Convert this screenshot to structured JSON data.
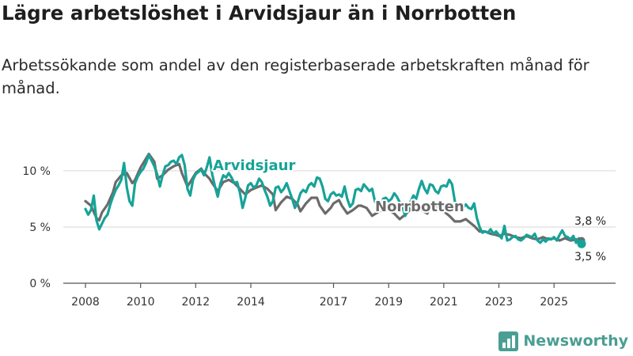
{
  "title": "Lägre arbetslöshet i Arvidsjaur än i Norrbotten",
  "subtitle": "Arbetssökande som andel av den registerbaserade arbetskraften månad för månad.",
  "brand": "Newsworthy",
  "colors": {
    "arvidsjaur": "#17a398",
    "norrbotten": "#6b6b6b",
    "grid": "#d6d6d6",
    "axis": "#555555"
  },
  "chart_data": {
    "type": "line",
    "title": "Lägre arbetslöshet i Arvidsjaur än i Norrbotten",
    "xlabel": "",
    "ylabel": "",
    "ylim": [
      0,
      12
    ],
    "xlim": [
      2008.0,
      2026.2
    ],
    "y_ticks": [
      0,
      5,
      10
    ],
    "y_tick_labels": [
      "0 %",
      "5 %",
      "10 %"
    ],
    "x_ticks": [
      2008,
      2010,
      2012,
      2014,
      2017,
      2019,
      2021,
      2023,
      2025
    ],
    "x_tick_labels": [
      "2008",
      "2010",
      "2012",
      "2014",
      "2017",
      "2019",
      "2021",
      "2023",
      "2025"
    ],
    "grid": true,
    "series": [
      {
        "name": "Arvidsjaur",
        "label": "Arvidsjaur",
        "end_label": "3,5 %",
        "end_value": 3.5,
        "points": [
          [
            2008.0,
            6.6
          ],
          [
            2008.1,
            6.1
          ],
          [
            2008.2,
            6.5
          ],
          [
            2008.3,
            7.8
          ],
          [
            2008.4,
            5.6
          ],
          [
            2008.5,
            4.8
          ],
          [
            2008.6,
            5.3
          ],
          [
            2008.7,
            5.8
          ],
          [
            2008.8,
            6.1
          ],
          [
            2008.9,
            7.0
          ],
          [
            2009.0,
            7.7
          ],
          [
            2009.1,
            8.3
          ],
          [
            2009.2,
            8.7
          ],
          [
            2009.3,
            9.2
          ],
          [
            2009.4,
            10.7
          ],
          [
            2009.5,
            8.5
          ],
          [
            2009.6,
            7.3
          ],
          [
            2009.7,
            6.9
          ],
          [
            2009.8,
            8.9
          ],
          [
            2009.9,
            9.5
          ],
          [
            2010.0,
            9.9
          ],
          [
            2010.1,
            10.2
          ],
          [
            2010.2,
            10.7
          ],
          [
            2010.3,
            11.4
          ],
          [
            2010.4,
            10.9
          ],
          [
            2010.5,
            10.4
          ],
          [
            2010.6,
            9.7
          ],
          [
            2010.7,
            8.6
          ],
          [
            2010.8,
            9.6
          ],
          [
            2010.9,
            10.4
          ],
          [
            2011.0,
            10.5
          ],
          [
            2011.1,
            10.8
          ],
          [
            2011.2,
            10.9
          ],
          [
            2011.3,
            10.6
          ],
          [
            2011.4,
            11.2
          ],
          [
            2011.5,
            11.4
          ],
          [
            2011.6,
            10.5
          ],
          [
            2011.7,
            8.4
          ],
          [
            2011.8,
            7.8
          ],
          [
            2011.9,
            9.2
          ],
          [
            2012.0,
            9.7
          ],
          [
            2012.1,
            9.9
          ],
          [
            2012.2,
            10.1
          ],
          [
            2012.3,
            9.6
          ],
          [
            2012.4,
            10.3
          ],
          [
            2012.5,
            11.2
          ],
          [
            2012.6,
            9.7
          ],
          [
            2012.7,
            8.6
          ],
          [
            2012.8,
            7.7
          ],
          [
            2012.9,
            8.9
          ],
          [
            2013.0,
            9.6
          ],
          [
            2013.1,
            9.4
          ],
          [
            2013.2,
            9.8
          ],
          [
            2013.3,
            9.4
          ],
          [
            2013.4,
            8.9
          ],
          [
            2013.5,
            9.0
          ],
          [
            2013.6,
            8.1
          ],
          [
            2013.7,
            6.7
          ],
          [
            2013.8,
            7.6
          ],
          [
            2013.9,
            8.7
          ],
          [
            2014.0,
            8.9
          ],
          [
            2014.1,
            8.5
          ],
          [
            2014.2,
            8.7
          ],
          [
            2014.3,
            9.3
          ],
          [
            2014.4,
            9.0
          ],
          [
            2014.5,
            8.3
          ],
          [
            2014.6,
            7.7
          ],
          [
            2014.7,
            6.9
          ],
          [
            2014.8,
            7.3
          ],
          [
            2014.9,
            8.5
          ],
          [
            2015.0,
            8.6
          ],
          [
            2015.1,
            8.1
          ],
          [
            2015.2,
            8.4
          ],
          [
            2015.3,
            8.9
          ],
          [
            2015.4,
            8.2
          ],
          [
            2015.5,
            7.5
          ],
          [
            2015.6,
            6.7
          ],
          [
            2015.7,
            7.2
          ],
          [
            2015.8,
            8.0
          ],
          [
            2015.9,
            8.3
          ],
          [
            2016.0,
            8.1
          ],
          [
            2016.1,
            8.7
          ],
          [
            2016.2,
            8.9
          ],
          [
            2016.3,
            8.6
          ],
          [
            2016.4,
            9.4
          ],
          [
            2016.5,
            9.3
          ],
          [
            2016.6,
            8.6
          ],
          [
            2016.7,
            7.5
          ],
          [
            2016.8,
            7.3
          ],
          [
            2016.9,
            7.9
          ],
          [
            2017.0,
            8.1
          ],
          [
            2017.1,
            7.8
          ],
          [
            2017.2,
            7.9
          ],
          [
            2017.3,
            7.7
          ],
          [
            2017.4,
            8.6
          ],
          [
            2017.5,
            7.5
          ],
          [
            2017.6,
            6.8
          ],
          [
            2017.7,
            7.1
          ],
          [
            2017.8,
            8.3
          ],
          [
            2017.9,
            8.4
          ],
          [
            2018.0,
            8.2
          ],
          [
            2018.1,
            8.8
          ],
          [
            2018.2,
            8.5
          ],
          [
            2018.3,
            8.2
          ],
          [
            2018.4,
            8.4
          ],
          [
            2018.5,
            7.3
          ],
          [
            2018.6,
            6.9
          ],
          [
            2018.7,
            6.5
          ],
          [
            2018.8,
            7.5
          ],
          [
            2018.9,
            7.6
          ],
          [
            2019.0,
            7.3
          ],
          [
            2019.1,
            7.5
          ],
          [
            2019.2,
            8.0
          ],
          [
            2019.3,
            7.7
          ],
          [
            2019.4,
            7.2
          ],
          [
            2019.5,
            6.8
          ],
          [
            2019.6,
            6.0
          ],
          [
            2019.7,
            6.5
          ],
          [
            2019.8,
            7.3
          ],
          [
            2019.9,
            7.8
          ],
          [
            2020.0,
            7.5
          ],
          [
            2020.1,
            8.4
          ],
          [
            2020.2,
            9.1
          ],
          [
            2020.3,
            8.4
          ],
          [
            2020.4,
            8.0
          ],
          [
            2020.5,
            8.8
          ],
          [
            2020.6,
            8.7
          ],
          [
            2020.7,
            8.2
          ],
          [
            2020.8,
            8.0
          ],
          [
            2020.9,
            8.6
          ],
          [
            2021.0,
            8.7
          ],
          [
            2021.1,
            8.6
          ],
          [
            2021.2,
            9.2
          ],
          [
            2021.3,
            8.8
          ],
          [
            2021.4,
            7.3
          ],
          [
            2021.5,
            6.6
          ],
          [
            2021.6,
            6.9
          ],
          [
            2021.7,
            6.7
          ],
          [
            2021.8,
            7.0
          ],
          [
            2021.9,
            6.7
          ],
          [
            2022.0,
            6.6
          ],
          [
            2022.1,
            7.1
          ],
          [
            2022.2,
            5.8
          ],
          [
            2022.3,
            5.0
          ],
          [
            2022.4,
            4.5
          ],
          [
            2022.5,
            4.6
          ],
          [
            2022.6,
            4.5
          ],
          [
            2022.7,
            4.8
          ],
          [
            2022.8,
            4.4
          ],
          [
            2022.9,
            4.6
          ],
          [
            2023.0,
            4.3
          ],
          [
            2023.1,
            4.0
          ],
          [
            2023.2,
            5.1
          ],
          [
            2023.3,
            3.8
          ],
          [
            2023.4,
            3.9
          ],
          [
            2023.5,
            4.1
          ],
          [
            2023.6,
            4.2
          ],
          [
            2023.7,
            3.9
          ],
          [
            2023.8,
            3.8
          ],
          [
            2023.9,
            4.0
          ],
          [
            2024.0,
            4.3
          ],
          [
            2024.1,
            4.2
          ],
          [
            2024.2,
            4.1
          ],
          [
            2024.3,
            4.4
          ],
          [
            2024.4,
            3.8
          ],
          [
            2024.5,
            3.6
          ],
          [
            2024.6,
            3.9
          ],
          [
            2024.7,
            3.7
          ],
          [
            2024.8,
            4.0
          ],
          [
            2024.9,
            3.9
          ],
          [
            2025.0,
            4.1
          ],
          [
            2025.1,
            3.8
          ],
          [
            2025.2,
            4.3
          ],
          [
            2025.3,
            4.7
          ],
          [
            2025.4,
            4.2
          ],
          [
            2025.5,
            4.1
          ],
          [
            2025.6,
            3.9
          ],
          [
            2025.7,
            4.2
          ],
          [
            2025.8,
            3.6
          ],
          [
            2025.9,
            4.0
          ],
          [
            2026.0,
            3.5
          ]
        ]
      },
      {
        "name": "Norrbotten",
        "label": "Norrbotten",
        "end_label": "3,8 %",
        "end_value": 3.8,
        "points": [
          [
            2008.0,
            7.3
          ],
          [
            2008.2,
            6.9
          ],
          [
            2008.4,
            5.8
          ],
          [
            2008.5,
            5.6
          ],
          [
            2008.6,
            6.3
          ],
          [
            2008.8,
            7.0
          ],
          [
            2009.0,
            8.1
          ],
          [
            2009.1,
            9.0
          ],
          [
            2009.3,
            9.6
          ],
          [
            2009.5,
            9.8
          ],
          [
            2009.7,
            8.9
          ],
          [
            2009.8,
            9.2
          ],
          [
            2010.0,
            10.3
          ],
          [
            2010.2,
            11.1
          ],
          [
            2010.3,
            11.5
          ],
          [
            2010.5,
            10.8
          ],
          [
            2010.6,
            9.3
          ],
          [
            2010.8,
            9.6
          ],
          [
            2011.0,
            10.1
          ],
          [
            2011.2,
            10.4
          ],
          [
            2011.4,
            10.6
          ],
          [
            2011.5,
            9.8
          ],
          [
            2011.7,
            8.6
          ],
          [
            2011.9,
            9.4
          ],
          [
            2012.0,
            9.8
          ],
          [
            2012.2,
            10.2
          ],
          [
            2012.3,
            9.8
          ],
          [
            2012.5,
            9.3
          ],
          [
            2012.6,
            8.9
          ],
          [
            2012.8,
            8.2
          ],
          [
            2013.0,
            9.0
          ],
          [
            2013.2,
            9.2
          ],
          [
            2013.4,
            8.9
          ],
          [
            2013.6,
            8.4
          ],
          [
            2013.8,
            7.9
          ],
          [
            2014.0,
            8.3
          ],
          [
            2014.2,
            8.5
          ],
          [
            2014.4,
            8.7
          ],
          [
            2014.6,
            8.4
          ],
          [
            2014.8,
            7.9
          ],
          [
            2014.9,
            6.5
          ],
          [
            2015.1,
            7.2
          ],
          [
            2015.3,
            7.7
          ],
          [
            2015.5,
            7.5
          ],
          [
            2015.7,
            7.0
          ],
          [
            2015.8,
            6.4
          ],
          [
            2016.0,
            7.1
          ],
          [
            2016.2,
            7.6
          ],
          [
            2016.4,
            7.6
          ],
          [
            2016.5,
            6.9
          ],
          [
            2016.7,
            6.2
          ],
          [
            2016.9,
            6.7
          ],
          [
            2017.0,
            7.1
          ],
          [
            2017.2,
            7.4
          ],
          [
            2017.3,
            6.9
          ],
          [
            2017.5,
            6.2
          ],
          [
            2017.7,
            6.5
          ],
          [
            2017.9,
            6.9
          ],
          [
            2018.0,
            6.9
          ],
          [
            2018.2,
            6.7
          ],
          [
            2018.4,
            6.0
          ],
          [
            2018.6,
            6.3
          ],
          [
            2018.8,
            6.6
          ],
          [
            2019.0,
            6.5
          ],
          [
            2019.2,
            6.2
          ],
          [
            2019.4,
            5.7
          ],
          [
            2019.6,
            6.1
          ],
          [
            2019.8,
            6.6
          ],
          [
            2020.0,
            6.7
          ],
          [
            2020.2,
            6.5
          ],
          [
            2020.4,
            6.2
          ],
          [
            2020.5,
            6.7
          ],
          [
            2020.7,
            6.9
          ],
          [
            2020.9,
            6.8
          ],
          [
            2021.0,
            6.4
          ],
          [
            2021.2,
            6.0
          ],
          [
            2021.4,
            5.5
          ],
          [
            2021.6,
            5.5
          ],
          [
            2021.8,
            5.7
          ],
          [
            2022.0,
            5.3
          ],
          [
            2022.1,
            5.1
          ],
          [
            2022.3,
            4.6
          ],
          [
            2022.5,
            4.6
          ],
          [
            2022.7,
            4.4
          ],
          [
            2022.9,
            4.3
          ],
          [
            2023.0,
            4.2
          ],
          [
            2023.2,
            4.4
          ],
          [
            2023.4,
            4.3
          ],
          [
            2023.6,
            4.1
          ],
          [
            2023.8,
            4.0
          ],
          [
            2024.0,
            4.2
          ],
          [
            2024.2,
            4.0
          ],
          [
            2024.4,
            3.9
          ],
          [
            2024.6,
            4.1
          ],
          [
            2024.8,
            3.9
          ],
          [
            2025.0,
            4.0
          ],
          [
            2025.2,
            3.8
          ],
          [
            2025.4,
            4.0
          ],
          [
            2025.6,
            3.8
          ],
          [
            2025.8,
            3.9
          ],
          [
            2026.0,
            3.8
          ]
        ]
      }
    ]
  }
}
